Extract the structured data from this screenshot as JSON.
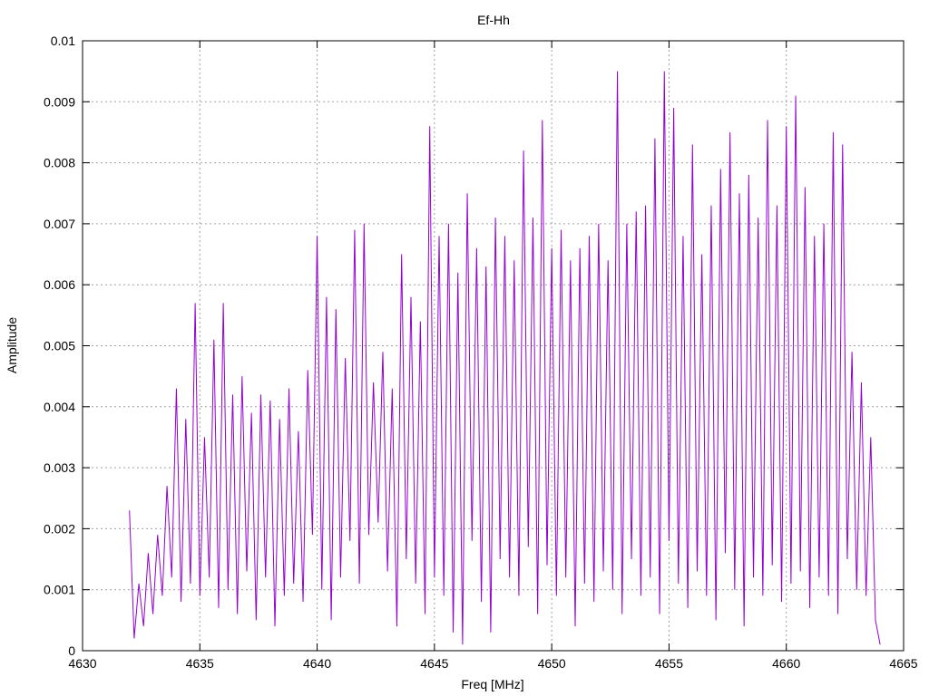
{
  "chart_data": {
    "type": "line",
    "title": "Ef-Hh",
    "x_label": "Freq [MHz]",
    "y_label": "Amplitude",
    "xlim": [
      4630,
      4665
    ],
    "xticks": [
      4630,
      4635,
      4640,
      4645,
      4650,
      4655,
      4660,
      4665
    ],
    "ylim": [
      0,
      0.01
    ],
    "yticks": [
      0,
      0.001,
      0.002,
      0.003,
      0.004,
      0.005,
      0.006,
      0.007,
      0.008,
      0.009,
      0.01
    ],
    "grid": true,
    "x": [
      4632.0,
      4632.2,
      4632.4,
      4632.6,
      4632.8,
      4633.0,
      4633.2,
      4633.4,
      4633.6,
      4633.8,
      4634.0,
      4634.2,
      4634.4,
      4634.6,
      4634.8,
      4635.0,
      4635.2,
      4635.4,
      4635.6,
      4635.8,
      4636.0,
      4636.2,
      4636.4,
      4636.6,
      4636.8,
      4637.0,
      4637.2,
      4637.4,
      4637.6,
      4637.8,
      4638.0,
      4638.2,
      4638.4,
      4638.6,
      4638.8,
      4639.0,
      4639.2,
      4639.4,
      4639.6,
      4639.8,
      4640.0,
      4640.2,
      4640.4,
      4640.6,
      4640.8,
      4641.0,
      4641.2,
      4641.4,
      4641.6,
      4641.8,
      4642.0,
      4642.2,
      4642.4,
      4642.6,
      4642.8,
      4643.0,
      4643.2,
      4643.4,
      4643.6,
      4643.8,
      4644.0,
      4644.2,
      4644.4,
      4644.6,
      4644.8,
      4645.0,
      4645.2,
      4645.4,
      4645.6,
      4645.8,
      4646.0,
      4646.2,
      4646.4,
      4646.6,
      4646.8,
      4647.0,
      4647.2,
      4647.4,
      4647.6,
      4647.8,
      4648.0,
      4648.2,
      4648.4,
      4648.6,
      4648.8,
      4649.0,
      4649.2,
      4649.4,
      4649.6,
      4649.8,
      4650.0,
      4650.2,
      4650.4,
      4650.6,
      4650.8,
      4651.0,
      4651.2,
      4651.4,
      4651.6,
      4651.8,
      4652.0,
      4652.2,
      4652.4,
      4652.6,
      4652.8,
      4653.0,
      4653.2,
      4653.4,
      4653.6,
      4653.8,
      4654.0,
      4654.2,
      4654.4,
      4654.6,
      4654.8,
      4655.0,
      4655.2,
      4655.4,
      4655.6,
      4655.8,
      4656.0,
      4656.2,
      4656.4,
      4656.6,
      4656.8,
      4657.0,
      4657.2,
      4657.4,
      4657.6,
      4657.8,
      4658.0,
      4658.2,
      4658.4,
      4658.6,
      4658.8,
      4659.0,
      4659.2,
      4659.4,
      4659.6,
      4659.8,
      4660.0,
      4660.2,
      4660.4,
      4660.6,
      4660.8,
      4661.0,
      4661.2,
      4661.4,
      4661.6,
      4661.8,
      4662.0,
      4662.2,
      4662.4,
      4662.6,
      4662.8,
      4663.0,
      4663.2,
      4663.4,
      4663.6,
      4663.8,
      4664.0
    ],
    "series": [
      {
        "name": "Ef-Hh",
        "color": "#9400d3",
        "values": [
          0.0023,
          0.0002,
          0.0011,
          0.0004,
          0.0016,
          0.0006,
          0.0019,
          0.0009,
          0.0027,
          0.0012,
          0.0043,
          0.0008,
          0.0038,
          0.0011,
          0.0057,
          0.0009,
          0.0035,
          0.0012,
          0.0051,
          0.0007,
          0.0057,
          0.001,
          0.0042,
          0.0006,
          0.0045,
          0.0013,
          0.0039,
          0.0005,
          0.0042,
          0.0012,
          0.0041,
          0.0004,
          0.0038,
          0.0009,
          0.0043,
          0.0011,
          0.0036,
          0.0008,
          0.0046,
          0.0019,
          0.0068,
          0.001,
          0.0058,
          0.0005,
          0.0056,
          0.0012,
          0.0048,
          0.0018,
          0.0069,
          0.0011,
          0.007,
          0.0019,
          0.0044,
          0.0021,
          0.0049,
          0.0013,
          0.0043,
          0.0004,
          0.0065,
          0.0015,
          0.0058,
          0.0011,
          0.0054,
          0.0006,
          0.0086,
          0.0012,
          0.0068,
          0.0009,
          0.007,
          0.0003,
          0.0062,
          0.0001,
          0.0075,
          0.0018,
          0.0066,
          0.0008,
          0.0063,
          0.0003,
          0.0071,
          0.0015,
          0.0068,
          0.0012,
          0.0064,
          0.0009,
          0.0082,
          0.0017,
          0.0071,
          0.0006,
          0.0087,
          0.0014,
          0.0066,
          0.0009,
          0.0069,
          0.0012,
          0.0064,
          0.0004,
          0.0066,
          0.0011,
          0.0068,
          0.0008,
          0.007,
          0.0013,
          0.0064,
          0.001,
          0.0095,
          0.0006,
          0.007,
          0.0015,
          0.0072,
          0.0009,
          0.0073,
          0.0012,
          0.0084,
          0.0006,
          0.0095,
          0.0018,
          0.0089,
          0.0011,
          0.0068,
          0.0007,
          0.0083,
          0.0013,
          0.0065,
          0.0009,
          0.0073,
          0.0005,
          0.0079,
          0.0016,
          0.0085,
          0.001,
          0.0075,
          0.0004,
          0.0078,
          0.0012,
          0.0071,
          0.0009,
          0.0087,
          0.0014,
          0.0073,
          0.0008,
          0.0086,
          0.0011,
          0.0091,
          0.0013,
          0.0076,
          0.0007,
          0.0068,
          0.0012,
          0.007,
          0.0009,
          0.0085,
          0.0006,
          0.0083,
          0.0015,
          0.0049,
          0.001,
          0.0044,
          0.0009,
          0.0035,
          0.0005,
          0.0001
        ]
      }
    ]
  }
}
